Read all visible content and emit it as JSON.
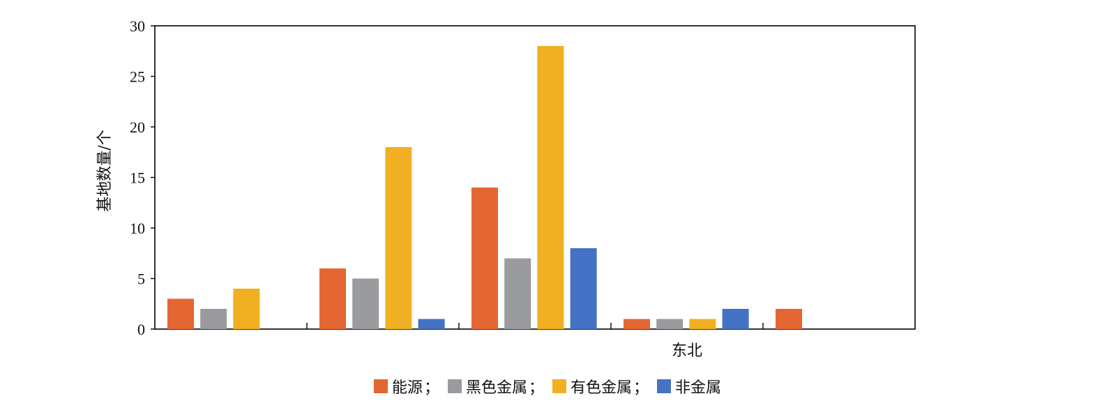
{
  "chart_data": {
    "type": "bar",
    "title": "",
    "xlabel": "",
    "ylabel": "基地数量/个",
    "ylim": [
      0,
      30
    ],
    "yticks": [
      0,
      5,
      10,
      15,
      20,
      25,
      30
    ],
    "categories": [
      "",
      "",
      "",
      "东北",
      ""
    ],
    "series": [
      {
        "name": "能源",
        "color": "#e46633",
        "values": [
          3,
          6,
          14,
          1,
          2
        ]
      },
      {
        "name": "黑色金属",
        "color": "#999b9e",
        "values": [
          2,
          5,
          7,
          1,
          0
        ]
      },
      {
        "name": "有色金属",
        "color": "#f0b022",
        "values": [
          4,
          18,
          28,
          1,
          0
        ]
      },
      {
        "name": "非金属",
        "color": "#4472c4",
        "values": [
          0,
          1,
          8,
          2,
          0
        ]
      }
    ],
    "legend": {
      "position": "bottom",
      "separator": "；"
    },
    "grid": false
  }
}
